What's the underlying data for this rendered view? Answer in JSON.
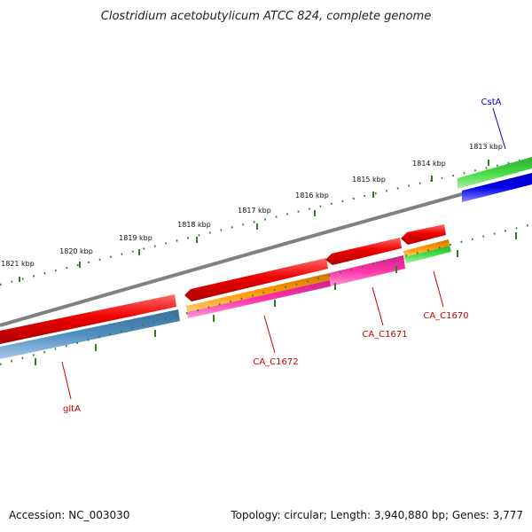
{
  "title": "Clostridium acetobutylicum ATCC 824, complete genome",
  "footer": {
    "accession": "Accession: NC_003030",
    "stats": "Topology: circular; Length: 3,940,880 bp; Genes: 3,777"
  },
  "colors": {
    "backbone": "#808080",
    "tick": "#2e7d1e",
    "gene_red": "#ee0000",
    "gene_blue": "#4682b4",
    "gene_green": "#33cc33",
    "gene_darkblue": "#0000ee",
    "gene_orange": "#ee8800",
    "gene_pink": "#ff33aa",
    "label_red": "#cc0000",
    "label_blue": "#0000cc"
  },
  "kbp_labels": [
    "1813 kbp",
    "1814 kbp",
    "1815 kbp",
    "1816 kbp",
    "1817 kbp",
    "1818 kbp",
    "1819 kbp",
    "1820 kbp",
    "1821 kbp"
  ],
  "gene_labels": [
    "CstA",
    "CA_C1670",
    "CA_C1671",
    "CA_C1672",
    "gltA"
  ]
}
